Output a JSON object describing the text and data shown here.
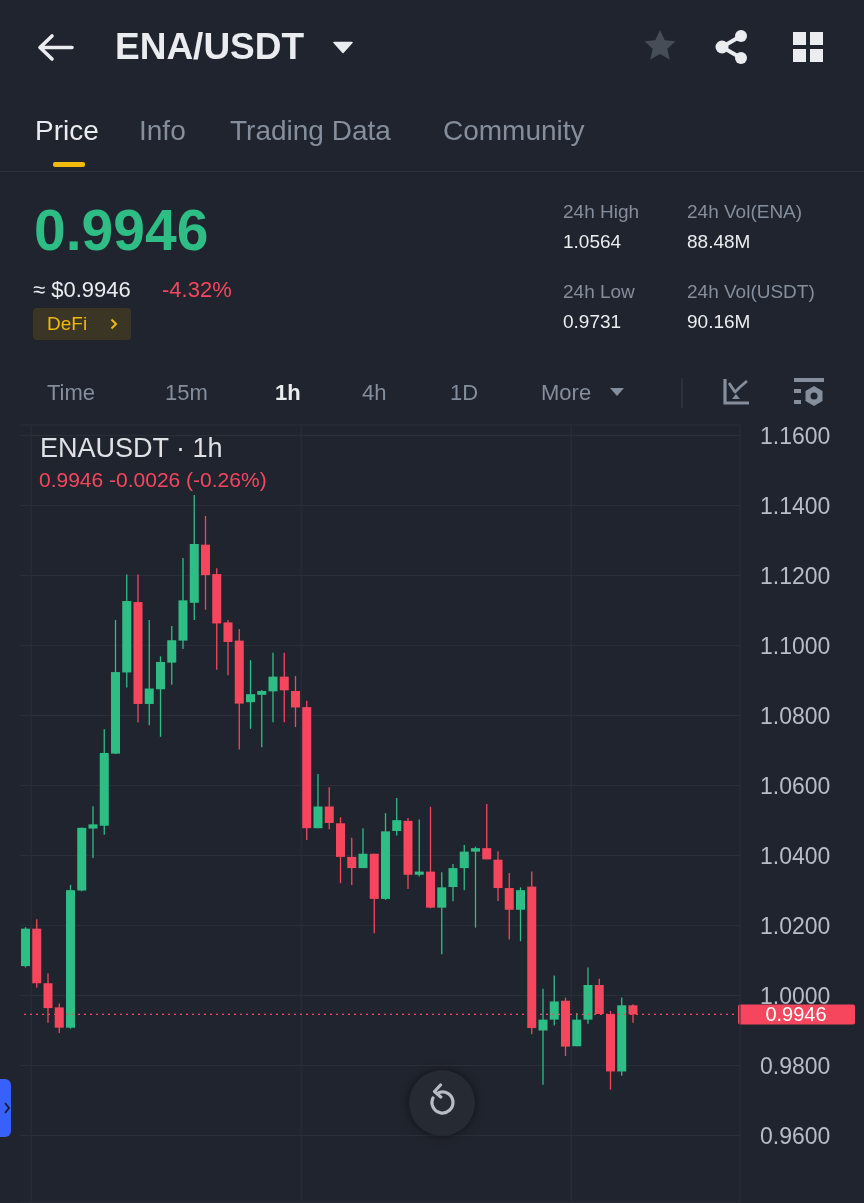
{
  "chart_data": {
    "type": "candlestick",
    "title": "ENAUSDT · 1h",
    "subtitle": "0.9946 -0.0026 (-0.26%)",
    "annotations": [
      "ENA/USDT",
      "Price",
      "Info",
      "Trading Data",
      "Community",
      "0.9946",
      "≈ $0.9946",
      "-4.32%",
      "DeFi",
      "24h High",
      "1.0564",
      "24h Vol(ENA)",
      "88.48M",
      "24h Low",
      "0.9731",
      "24h Vol(USDT)",
      "90.16M",
      "Time",
      "15m",
      "1h",
      "4h",
      "1D",
      "More"
    ],
    "categories": [
      null,
      null,
      null,
      null,
      null,
      null,
      null,
      null,
      null,
      null,
      null,
      null,
      null,
      null,
      null,
      null,
      null,
      null,
      null,
      null,
      null,
      null,
      null,
      null,
      null,
      null,
      null,
      null,
      null,
      null,
      null,
      null,
      null,
      null,
      null,
      null,
      null,
      null,
      null,
      null,
      null,
      null,
      null,
      null,
      null,
      null,
      null,
      null,
      null,
      null,
      null,
      null,
      null,
      null,
      null,
      null,
      null,
      null,
      null,
      null,
      null,
      null,
      null,
      null
    ],
    "ohlc": [
      [
        1.0084,
        1.0195,
        1.008,
        1.0191
      ],
      [
        1.0191,
        1.0218,
        1.0022,
        1.0035
      ],
      [
        1.0035,
        1.0063,
        0.9922,
        0.9964
      ],
      [
        0.9966,
        0.9977,
        0.9893,
        0.9908
      ],
      [
        0.9908,
        1.0316,
        0.9905,
        1.0301
      ],
      [
        1.03,
        1.048,
        1.0298,
        1.0479
      ],
      [
        1.0477,
        1.0541,
        1.0393,
        1.0489
      ],
      [
        1.0485,
        1.0761,
        1.0459,
        1.0693
      ],
      [
        1.0691,
        1.1073,
        1.069,
        1.0924
      ],
      [
        1.0923,
        1.1203,
        1.088,
        1.1127
      ],
      [
        1.1124,
        1.1203,
        1.078,
        1.0833
      ],
      [
        1.0833,
        1.1073,
        1.0772,
        1.0877
      ],
      [
        1.0875,
        1.0969,
        1.0739,
        1.0953
      ],
      [
        1.0951,
        1.1056,
        1.0888,
        1.1015
      ],
      [
        1.1014,
        1.125,
        1.099,
        1.1129
      ],
      [
        1.1122,
        1.143,
        1.1073,
        1.129
      ],
      [
        1.1288,
        1.137,
        1.1102,
        1.1201
      ],
      [
        1.1204,
        1.1221,
        1.0931,
        1.1063
      ],
      [
        1.1066,
        1.1073,
        1.0915,
        1.101
      ],
      [
        1.1014,
        1.1047,
        1.0703,
        1.0834
      ],
      [
        1.0838,
        1.0958,
        1.0762,
        1.0861
      ],
      [
        1.0859,
        1.0873,
        1.0709,
        1.087
      ],
      [
        1.0869,
        1.0979,
        1.0781,
        1.0911
      ],
      [
        1.0911,
        1.0979,
        1.0781,
        1.0872
      ],
      [
        1.087,
        1.0913,
        1.0767,
        1.0823
      ],
      [
        1.0824,
        1.0842,
        1.0444,
        1.0478
      ],
      [
        1.0478,
        1.0633,
        1.0478,
        1.054
      ],
      [
        1.054,
        1.0595,
        1.0475,
        1.0493
      ],
      [
        1.0492,
        1.0509,
        1.0321,
        1.0396
      ],
      [
        1.0396,
        1.0451,
        1.0316,
        1.0364
      ],
      [
        1.0364,
        1.0478,
        1.0364,
        1.0405
      ],
      [
        1.0405,
        1.0405,
        1.0178,
        1.0276
      ],
      [
        1.0276,
        1.0521,
        1.0273,
        1.0469
      ],
      [
        1.047,
        1.0564,
        1.0457,
        1.0501
      ],
      [
        1.0499,
        1.0507,
        1.0304,
        1.0345
      ],
      [
        1.0345,
        1.0503,
        1.034,
        1.0354
      ],
      [
        1.0354,
        1.0539,
        1.0249,
        1.0251
      ],
      [
        1.0251,
        1.0352,
        1.0118,
        1.0309
      ],
      [
        1.031,
        1.0376,
        1.0269,
        1.0364
      ],
      [
        1.0364,
        1.043,
        1.0301,
        1.0411
      ],
      [
        1.0411,
        1.0425,
        1.0194,
        1.0421
      ],
      [
        1.0421,
        1.0547,
        1.0389,
        1.0389
      ],
      [
        1.0388,
        1.0412,
        1.027,
        1.0307
      ],
      [
        1.0307,
        1.035,
        1.016,
        1.0245
      ],
      [
        1.0245,
        1.0309,
        1.0155,
        1.0301
      ],
      [
        1.0311,
        1.0354,
        0.9889,
        0.9907
      ],
      [
        0.99,
        1.0019,
        0.9745,
        0.9931
      ],
      [
        0.9931,
        1.0057,
        0.9914,
        0.9983
      ],
      [
        0.9985,
        0.9994,
        0.9827,
        0.9854
      ],
      [
        0.9855,
        0.995,
        0.9855,
        0.9931
      ],
      [
        0.9931,
        1.008,
        0.9919,
        1.003
      ],
      [
        1.003,
        1.0048,
        0.9947,
        0.9947
      ],
      [
        0.9947,
        0.9956,
        0.9731,
        0.9783
      ],
      [
        0.9783,
        0.9994,
        0.9771,
        0.9972
      ],
      [
        0.9972,
        0.9975,
        0.9922,
        0.9946
      ],
      null,
      null,
      null,
      null,
      null,
      null,
      null,
      null,
      null
    ],
    "colors": [
      "#2ebd85",
      "#f6465d",
      "#f6465d",
      "#f6465d",
      "#2ebd85",
      "#2ebd85",
      "#2ebd85",
      "#2ebd85",
      "#2ebd85",
      "#2ebd85",
      "#f6465d",
      "#2ebd85",
      "#2ebd85",
      "#2ebd85",
      "#2ebd85",
      "#2ebd85",
      "#f6465d",
      "#f6465d",
      "#f6465d",
      "#f6465d",
      "#2ebd85",
      "#2ebd85",
      "#2ebd85",
      "#f6465d",
      "#f6465d",
      "#f6465d",
      "#2ebd85",
      "#f6465d",
      "#f6465d",
      "#f6465d",
      "#2ebd85",
      "#f6465d",
      "#2ebd85",
      "#2ebd85",
      "#f6465d",
      "#2ebd85",
      "#f6465d",
      "#2ebd85",
      "#2ebd85",
      "#2ebd85",
      "#2ebd85",
      "#f6465d",
      "#f6465d",
      "#f6465d",
      "#2ebd85",
      "#f6465d",
      "#2ebd85",
      "#2ebd85",
      "#f6465d",
      "#2ebd85",
      "#2ebd85",
      "#f6465d",
      "#f6465d",
      "#2ebd85",
      "#f6465d",
      null,
      null,
      null,
      null,
      null,
      null,
      null,
      null,
      null
    ],
    "ylim": [
      0.941,
      1.163
    ],
    "yticks": [
      {
        "value": 0.96,
        "label": "0.9600"
      },
      {
        "value": 0.98,
        "label": "0.9800"
      },
      {
        "value": 1.0,
        "label": "1.0000"
      },
      {
        "value": 1.02,
        "label": "1.0200"
      },
      {
        "value": 1.04,
        "label": "1.0400"
      },
      {
        "value": 1.06,
        "label": "1.0600"
      },
      {
        "value": 1.08,
        "label": "1.0800"
      },
      {
        "value": 1.1,
        "label": "1.1000"
      },
      {
        "value": 1.12,
        "label": "1.1200"
      },
      {
        "value": 1.14,
        "label": "1.1400"
      },
      {
        "value": 1.16,
        "label": "1.1600"
      }
    ],
    "grid": true,
    "ref_lines": [
      {
        "axis": "y",
        "value": 0.9946,
        "label": "0.9946",
        "color": "#f6465d",
        "line_style": "dotted"
      }
    ]
  }
}
